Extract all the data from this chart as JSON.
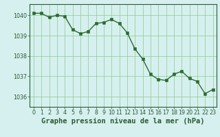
{
  "x": [
    0,
    1,
    2,
    3,
    4,
    5,
    6,
    7,
    8,
    9,
    10,
    11,
    12,
    13,
    14,
    15,
    16,
    17,
    18,
    19,
    20,
    21,
    22,
    23
  ],
  "y": [
    1040.1,
    1040.1,
    1039.9,
    1040.0,
    1039.95,
    1039.3,
    1039.1,
    1039.2,
    1039.6,
    1039.65,
    1039.8,
    1039.6,
    1039.15,
    1038.35,
    1037.85,
    1037.1,
    1036.85,
    1036.8,
    1037.1,
    1037.25,
    1036.9,
    1036.75,
    1036.15,
    1036.35
  ],
  "line_color": "#2d6a2d",
  "marker_color": "#2d6a2d",
  "bg_color": "#d6f0f0",
  "plot_bg_color": "#d6f0f0",
  "grid_color": "#88cc88",
  "axis_color": "#2d5a2d",
  "xlabel": "Graphe pression niveau de la mer (hPa)",
  "xlabel_color": "#2d5a2d",
  "ylim": [
    1035.5,
    1040.55
  ],
  "xlim": [
    -0.5,
    23.5
  ],
  "yticks": [
    1036,
    1037,
    1038,
    1039,
    1040
  ],
  "xtick_labels": [
    "0",
    "1",
    "2",
    "3",
    "4",
    "5",
    "6",
    "7",
    "8",
    "9",
    "10",
    "11",
    "12",
    "13",
    "14",
    "15",
    "16",
    "17",
    "18",
    "19",
    "20",
    "21",
    "22",
    "23"
  ],
  "tick_fontsize": 5.8,
  "xlabel_fontsize": 7.5,
  "line_width": 1.0,
  "marker_size": 2.5
}
